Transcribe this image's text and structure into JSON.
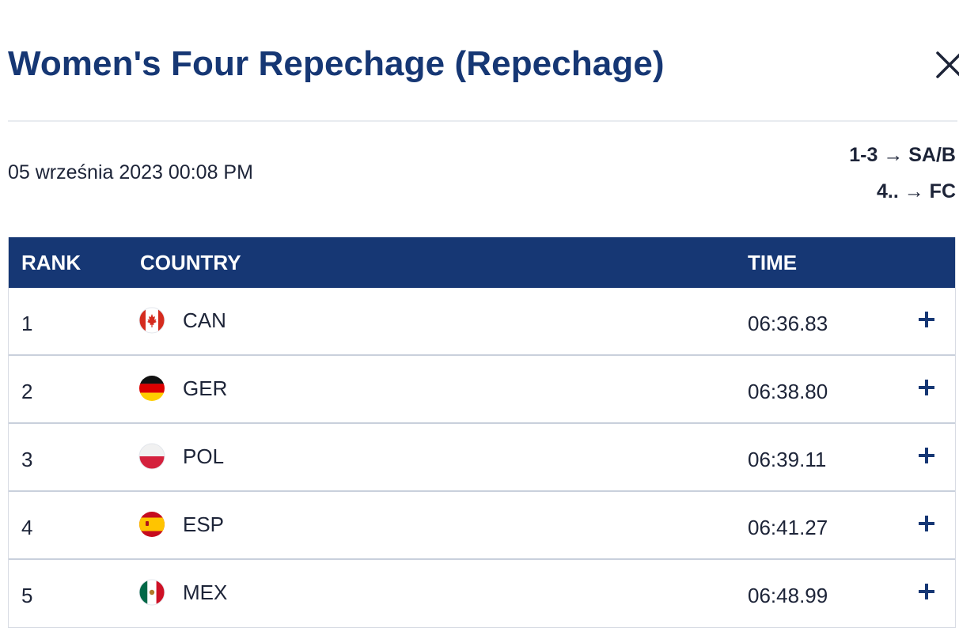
{
  "header": {
    "title": "Women's Four Repechage (Repechage)",
    "close_icon": "close-icon"
  },
  "meta": {
    "date": "05 września 2023 00:08 PM",
    "progression": [
      "1-3 → SA/B",
      "4.. → FC"
    ]
  },
  "table": {
    "columns": {
      "rank": "RANK",
      "country": "COUNTRY",
      "time": "TIME"
    },
    "rows": [
      {
        "rank": "1",
        "country": "CAN",
        "time": "06:36.83",
        "flag": "flag-canada-icon"
      },
      {
        "rank": "2",
        "country": "GER",
        "time": "06:38.80",
        "flag": "flag-germany-icon"
      },
      {
        "rank": "3",
        "country": "POL",
        "time": "06:39.11",
        "flag": "flag-poland-icon"
      },
      {
        "rank": "4",
        "country": "ESP",
        "time": "06:41.27",
        "flag": "flag-spain-icon"
      },
      {
        "rank": "5",
        "country": "MEX",
        "time": "06:48.99",
        "flag": "flag-mexico-icon"
      }
    ],
    "expand_icon": "plus-icon"
  },
  "colors": {
    "brand": "#163774",
    "text": "#1d2438",
    "divider": "#e8ebf0",
    "row_border": "#c9d0dc"
  }
}
